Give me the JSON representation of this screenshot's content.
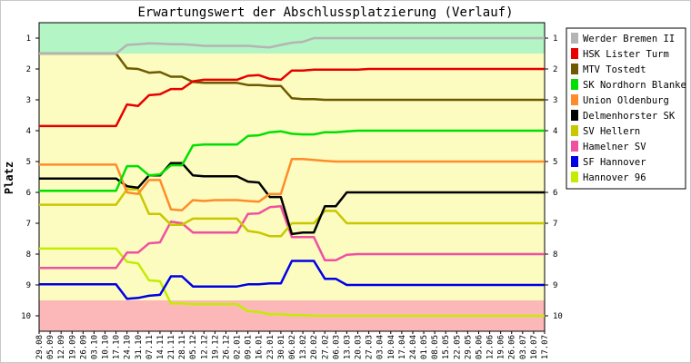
{
  "chart_data": {
    "type": "line",
    "title": "Erwartungswert der Abschlussplatzierung (Verlauf)",
    "ylabel": "Platz",
    "xlabel": "",
    "ylim": [
      0.5,
      10.5
    ],
    "y_inverted": true,
    "yticks": [
      1,
      2,
      3,
      4,
      5,
      6,
      7,
      8,
      9,
      10
    ],
    "grid": false,
    "legend_position": "right",
    "zones": [
      {
        "from": 0.5,
        "to": 1.5,
        "color": "#b3f5c5"
      },
      {
        "from": 1.5,
        "to": 9.5,
        "color": "#fcfcc0"
      },
      {
        "from": 9.5,
        "to": 10.5,
        "color": "#fcb8b8"
      }
    ],
    "categories": [
      "29.08",
      "05.09",
      "12.09",
      "19.09",
      "26.09",
      "03.10",
      "10.10",
      "17.10",
      "24.10",
      "31.10",
      "07.11",
      "14.11",
      "21.11",
      "28.11",
      "05.12",
      "12.12",
      "19.12",
      "26.12",
      "02.01",
      "09.01",
      "16.01",
      "23.01",
      "30.01",
      "06.02",
      "13.02",
      "20.02",
      "27.02",
      "06.03",
      "13.03",
      "20.03",
      "27.03",
      "03.04",
      "10.04",
      "17.04",
      "24.04",
      "01.05",
      "08.05",
      "15.05",
      "22.05",
      "29.05",
      "05.06",
      "12.06",
      "19.06",
      "26.06",
      "03.07",
      "10.07",
      "17.07"
    ],
    "series": [
      {
        "name": "Werder Bremen II",
        "color": "#b4b4b4",
        "values": [
          1.5,
          1.5,
          1.5,
          1.5,
          1.5,
          1.5,
          1.5,
          1.5,
          1.22,
          1.2,
          1.17,
          1.18,
          1.2,
          1.2,
          1.22,
          1.25,
          1.25,
          1.25,
          1.25,
          1.25,
          1.28,
          1.3,
          1.22,
          1.15,
          1.12,
          1.0,
          1.0,
          1.0,
          1.0,
          1.0,
          1.0,
          1.0,
          1.0,
          1.0,
          1.0,
          1.0,
          1.0,
          1.0,
          1.0,
          1.0,
          1.0,
          1.0,
          1.0,
          1.0,
          1.0,
          1.0,
          1.0
        ]
      },
      {
        "name": "HSK Lister Turm",
        "color": "#e80000",
        "values": [
          3.85,
          3.85,
          3.85,
          3.85,
          3.85,
          3.85,
          3.85,
          3.85,
          3.15,
          3.2,
          2.85,
          2.82,
          2.65,
          2.65,
          2.4,
          2.35,
          2.35,
          2.35,
          2.35,
          2.22,
          2.2,
          2.32,
          2.35,
          2.05,
          2.05,
          2.02,
          2.02,
          2.02,
          2.02,
          2.02,
          2.0,
          2.0,
          2.0,
          2.0,
          2.0,
          2.0,
          2.0,
          2.0,
          2.0,
          2.0,
          2.0,
          2.0,
          2.0,
          2.0,
          2.0,
          2.0,
          2.0
        ]
      },
      {
        "name": "MTV Tostedt",
        "color": "#6e5a00",
        "values": [
          1.5,
          1.5,
          1.5,
          1.5,
          1.5,
          1.5,
          1.5,
          1.5,
          1.98,
          2.0,
          2.12,
          2.1,
          2.25,
          2.25,
          2.42,
          2.45,
          2.45,
          2.45,
          2.45,
          2.52,
          2.52,
          2.55,
          2.55,
          2.95,
          2.98,
          2.98,
          3.0,
          3.0,
          3.0,
          3.0,
          3.0,
          3.0,
          3.0,
          3.0,
          3.0,
          3.0,
          3.0,
          3.0,
          3.0,
          3.0,
          3.0,
          3.0,
          3.0,
          3.0,
          3.0,
          3.0,
          3.0
        ]
      },
      {
        "name": "SK Nordhorn Blanke",
        "color": "#00e000",
        "values": [
          5.95,
          5.95,
          5.95,
          5.95,
          5.95,
          5.95,
          5.95,
          5.95,
          5.15,
          5.15,
          5.45,
          5.42,
          5.12,
          5.12,
          4.48,
          4.45,
          4.45,
          4.45,
          4.45,
          4.17,
          4.15,
          4.05,
          4.02,
          4.1,
          4.12,
          4.12,
          4.05,
          4.05,
          4.02,
          4.0,
          4.0,
          4.0,
          4.0,
          4.0,
          4.0,
          4.0,
          4.0,
          4.0,
          4.0,
          4.0,
          4.0,
          4.0,
          4.0,
          4.0,
          4.0,
          4.0,
          4.0
        ]
      },
      {
        "name": "Union Oldenburg",
        "color": "#ff8c2a",
        "values": [
          5.1,
          5.1,
          5.1,
          5.1,
          5.1,
          5.1,
          5.1,
          5.1,
          6.0,
          6.05,
          5.6,
          5.6,
          6.55,
          6.58,
          6.25,
          6.28,
          6.25,
          6.25,
          6.25,
          6.28,
          6.3,
          6.05,
          6.05,
          4.92,
          4.92,
          4.95,
          4.98,
          5.0,
          5.0,
          5.0,
          5.0,
          5.0,
          5.0,
          5.0,
          5.0,
          5.0,
          5.0,
          5.0,
          5.0,
          5.0,
          5.0,
          5.0,
          5.0,
          5.0,
          5.0,
          5.0,
          5.0
        ]
      },
      {
        "name": "Delmenhorster SK",
        "color": "#000000",
        "values": [
          5.55,
          5.55,
          5.55,
          5.55,
          5.55,
          5.55,
          5.55,
          5.55,
          5.8,
          5.85,
          5.45,
          5.45,
          5.05,
          5.05,
          5.45,
          5.48,
          5.48,
          5.48,
          5.48,
          5.65,
          5.68,
          6.15,
          6.15,
          7.35,
          7.3,
          7.3,
          6.45,
          6.45,
          6.0,
          6.0,
          6.0,
          6.0,
          6.0,
          6.0,
          6.0,
          6.0,
          6.0,
          6.0,
          6.0,
          6.0,
          6.0,
          6.0,
          6.0,
          6.0,
          6.0,
          6.0,
          6.0
        ]
      },
      {
        "name": "SV Hellern",
        "color": "#c8c800",
        "values": [
          6.4,
          6.4,
          6.4,
          6.4,
          6.4,
          6.4,
          6.4,
          6.4,
          5.9,
          5.9,
          6.7,
          6.7,
          7.05,
          7.05,
          6.85,
          6.85,
          6.85,
          6.85,
          6.85,
          7.25,
          7.3,
          7.42,
          7.42,
          7.0,
          7.0,
          7.0,
          6.6,
          6.6,
          7.0,
          7.0,
          7.0,
          7.0,
          7.0,
          7.0,
          7.0,
          7.0,
          7.0,
          7.0,
          7.0,
          7.0,
          7.0,
          7.0,
          7.0,
          7.0,
          7.0,
          7.0,
          7.0
        ]
      },
      {
        "name": "Hamelner SV",
        "color": "#f050a0",
        "values": [
          8.45,
          8.45,
          8.45,
          8.45,
          8.45,
          8.45,
          8.45,
          8.45,
          7.95,
          7.95,
          7.65,
          7.62,
          6.95,
          7.0,
          7.3,
          7.3,
          7.3,
          7.3,
          7.3,
          6.7,
          6.68,
          6.48,
          6.45,
          7.45,
          7.45,
          7.45,
          8.2,
          8.2,
          8.02,
          8.0,
          8.0,
          8.0,
          8.0,
          8.0,
          8.0,
          8.0,
          8.0,
          8.0,
          8.0,
          8.0,
          8.0,
          8.0,
          8.0,
          8.0,
          8.0,
          8.0,
          8.0
        ]
      },
      {
        "name": "SF Hannover",
        "color": "#0000e6",
        "values": [
          8.98,
          8.98,
          8.98,
          8.98,
          8.98,
          8.98,
          8.98,
          8.98,
          9.45,
          9.42,
          9.35,
          9.32,
          8.72,
          8.72,
          9.05,
          9.05,
          9.05,
          9.05,
          9.05,
          8.98,
          8.98,
          8.95,
          8.95,
          8.22,
          8.22,
          8.22,
          8.8,
          8.8,
          9.0,
          9.0,
          9.0,
          9.0,
          9.0,
          9.0,
          9.0,
          9.0,
          9.0,
          9.0,
          9.0,
          9.0,
          9.0,
          9.0,
          9.0,
          9.0,
          9.0,
          9.0,
          9.0
        ]
      },
      {
        "name": "Hannover 96",
        "color": "#c4ec00",
        "values": [
          7.82,
          7.82,
          7.82,
          7.82,
          7.82,
          7.82,
          7.82,
          7.82,
          8.25,
          8.3,
          8.85,
          8.88,
          9.6,
          9.6,
          9.62,
          9.62,
          9.62,
          9.62,
          9.62,
          9.85,
          9.88,
          9.95,
          9.95,
          9.98,
          9.98,
          10.0,
          10.0,
          10.0,
          10.0,
          10.0,
          10.0,
          10.0,
          10.0,
          10.0,
          10.0,
          10.0,
          10.0,
          10.0,
          10.0,
          10.0,
          10.0,
          10.0,
          10.0,
          10.0,
          10.0,
          10.0,
          10.0
        ]
      }
    ]
  }
}
